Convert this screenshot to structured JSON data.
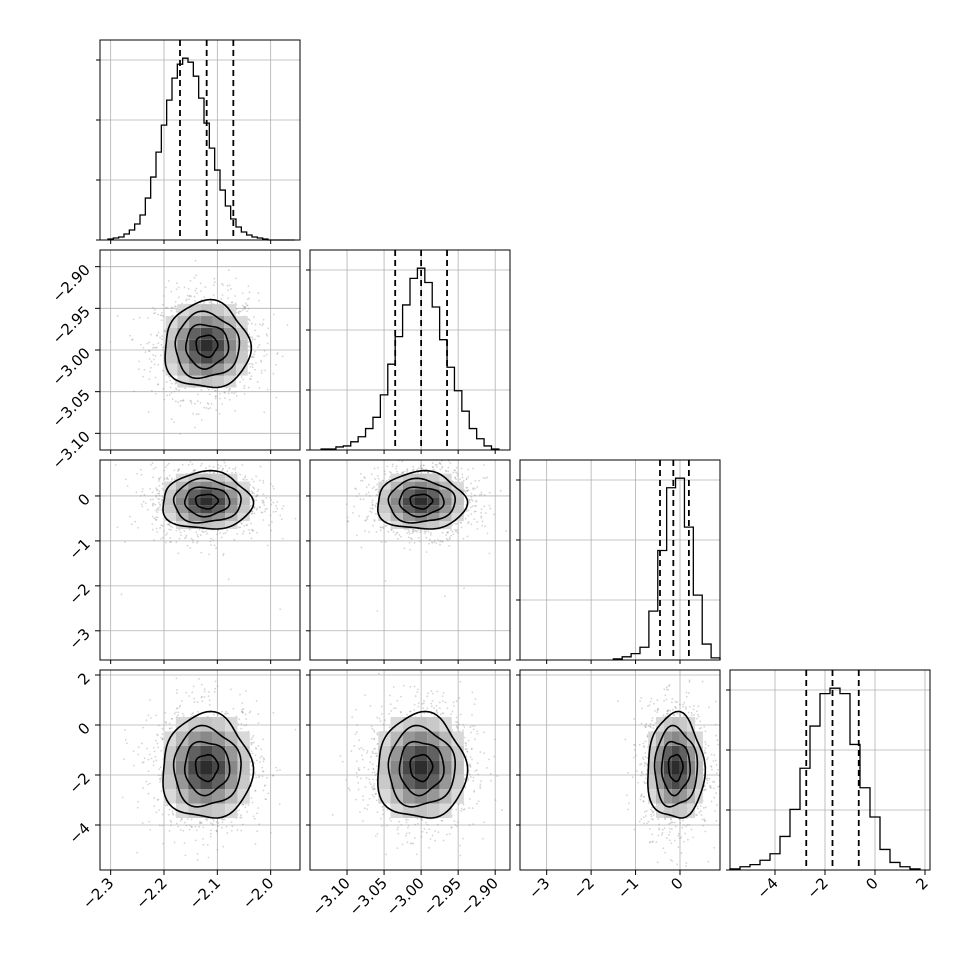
{
  "figure": {
    "type": "corner-plot"
  },
  "colors": {
    "line": "#000000",
    "grid": "#b0b0b0",
    "scatter": "#888888",
    "frame": "#000000"
  },
  "chart_data": [
    {
      "panel": "hist-0",
      "type": "histogram",
      "grid": true,
      "xlim": [
        -2.32,
        -1.945
      ],
      "bins": [
        -2.3,
        -2.29,
        -2.28,
        -2.27,
        -2.26,
        -2.25,
        -2.24,
        -2.23,
        -2.22,
        -2.21,
        -2.2,
        -2.19,
        -2.18,
        -2.17,
        -2.16,
        -2.15,
        -2.14,
        -2.13,
        -2.12,
        -2.11,
        -2.1,
        -2.09,
        -2.08,
        -2.07,
        -2.06,
        -2.05,
        -2.04,
        -2.03,
        -2.02,
        -2.01,
        -2.0,
        -1.99,
        -1.98,
        -1.97,
        -1.96
      ],
      "counts": [
        1,
        2,
        3,
        6,
        10,
        16,
        25,
        42,
        63,
        88,
        115,
        140,
        162,
        176,
        182,
        178,
        164,
        142,
        117,
        92,
        70,
        50,
        34,
        21,
        13,
        8,
        5,
        3,
        2,
        1,
        0,
        0,
        0,
        0,
        0
      ],
      "quantiles": [
        -2.17,
        -2.12,
        -2.07
      ]
    },
    {
      "panel": "hist-1",
      "type": "histogram",
      "grid": true,
      "xlim": [
        -3.15,
        -2.88
      ],
      "bins": [
        -3.13,
        -3.12,
        -3.11,
        -3.1,
        -3.09,
        -3.08,
        -3.07,
        -3.06,
        -3.05,
        -3.04,
        -3.03,
        -3.02,
        -3.01,
        -3.0,
        -2.99,
        -2.98,
        -2.97,
        -2.96,
        -2.95,
        -2.94,
        -2.93,
        -2.92,
        -2.91,
        -2.9
      ],
      "counts": [
        1,
        1,
        3,
        4,
        8,
        13,
        21,
        32,
        54,
        84,
        111,
        142,
        168,
        178,
        164,
        140,
        108,
        81,
        58,
        38,
        21,
        11,
        4,
        1
      ],
      "quantiles": [
        -3.035,
        -3.0,
        -2.965
      ]
    },
    {
      "panel": "hist-2",
      "type": "histogram",
      "grid": true,
      "xlim": [
        -3.6,
        0.9
      ],
      "bins": [
        -1.4,
        -1.2,
        -1.0,
        -0.8,
        -0.6,
        -0.4,
        -0.2,
        0.0,
        0.2,
        0.4,
        0.6,
        0.8
      ],
      "counts": [
        1,
        3,
        6,
        12,
        46,
        103,
        162,
        171,
        125,
        61,
        15,
        2
      ],
      "quantiles": [
        -0.45,
        -0.15,
        0.2
      ]
    },
    {
      "panel": "hist-3",
      "type": "histogram",
      "grid": true,
      "xlim": [
        -5.8,
        2.2
      ],
      "bins": [
        -5.6,
        -5.2,
        -4.8,
        -4.4,
        -4.0,
        -3.6,
        -3.2,
        -2.8,
        -2.4,
        -2.0,
        -1.6,
        -1.2,
        -0.8,
        -0.4,
        0.0,
        0.4,
        0.8,
        1.2,
        1.6
      ],
      "counts": [
        1,
        3,
        5,
        9,
        15,
        31,
        56,
        94,
        133,
        163,
        168,
        163,
        116,
        76,
        49,
        19,
        7,
        3,
        1
      ],
      "quantiles": [
        -2.75,
        -1.7,
        -0.65
      ]
    },
    {
      "panel": "scatter-1-0",
      "type": "scatter-contour",
      "grid": true,
      "xlim": [
        -2.32,
        -1.945
      ],
      "ylim": [
        -3.12,
        -2.88
      ],
      "center": [
        -2.12,
        -2.995
      ],
      "sigma": [
        0.04,
        0.026
      ],
      "rho": 0.0
    },
    {
      "panel": "scatter-2-0",
      "type": "scatter-contour",
      "grid": true,
      "xlim": [
        -2.32,
        -1.945
      ],
      "ylim": [
        -3.65,
        0.8
      ],
      "center": [
        -2.12,
        -0.12
      ],
      "sigma": [
        0.042,
        0.32
      ],
      "rho": 0.0
    },
    {
      "panel": "scatter-2-1",
      "type": "scatter-contour",
      "grid": true,
      "xlim": [
        -3.15,
        -2.88
      ],
      "ylim": [
        -3.65,
        0.8
      ],
      "center": [
        -3.0,
        -0.12
      ],
      "sigma": [
        0.03,
        0.32
      ],
      "rho": 0.0
    },
    {
      "panel": "scatter-3-0",
      "type": "scatter-contour",
      "grid": true,
      "xlim": [
        -2.32,
        -1.945
      ],
      "ylim": [
        -5.8,
        2.2
      ],
      "center": [
        -2.12,
        -1.7
      ],
      "sigma": [
        0.042,
        1.05
      ],
      "rho": 0.0
    },
    {
      "panel": "scatter-3-1",
      "type": "scatter-contour",
      "grid": true,
      "xlim": [
        -3.15,
        -2.88
      ],
      "ylim": [
        -5.8,
        2.2
      ],
      "center": [
        -3.0,
        -1.7
      ],
      "sigma": [
        0.03,
        1.05
      ],
      "rho": 0.0
    },
    {
      "panel": "scatter-3-2",
      "type": "scatter-contour",
      "grid": true,
      "xlim": [
        -3.6,
        0.9
      ],
      "ylim": [
        -5.8,
        2.2
      ],
      "center": [
        -0.1,
        -1.7
      ],
      "sigma": [
        0.32,
        1.05
      ],
      "rho": 0.0
    }
  ],
  "axes": {
    "x0": {
      "ticks": [
        -2.3,
        -2.2,
        -2.1,
        -2.0
      ],
      "labels": [
        "−2.3",
        "−2.2",
        "−2.1",
        "−2.0"
      ]
    },
    "x1": {
      "ticks": [
        -3.1,
        -3.05,
        -3.0,
        -2.95,
        -2.9
      ],
      "labels": [
        "−3.10",
        "−3.05",
        "−3.00",
        "−2.95",
        "−2.90"
      ]
    },
    "x2": {
      "ticks": [
        -3,
        -2,
        -1,
        0
      ],
      "labels": [
        "−3",
        "−2",
        "−1",
        "0"
      ]
    },
    "x3": {
      "ticks": [
        -4,
        -2,
        0,
        2
      ],
      "labels": [
        "−4",
        "−2",
        "0",
        "2"
      ]
    },
    "y1": {
      "ticks": [
        -2.9,
        -2.95,
        -3.0,
        -3.05,
        -3.1
      ],
      "labels": [
        "−2.90",
        "−2.95",
        "−3.00",
        "−3.05",
        "−3.10"
      ]
    },
    "y2": {
      "ticks": [
        0,
        -1,
        -2,
        -3
      ],
      "labels": [
        "0",
        "−1",
        "−2",
        "−3"
      ]
    },
    "y3": {
      "ticks": [
        2,
        0,
        -2,
        -4
      ],
      "labels": [
        "2",
        "0",
        "−2",
        "−4"
      ]
    }
  }
}
